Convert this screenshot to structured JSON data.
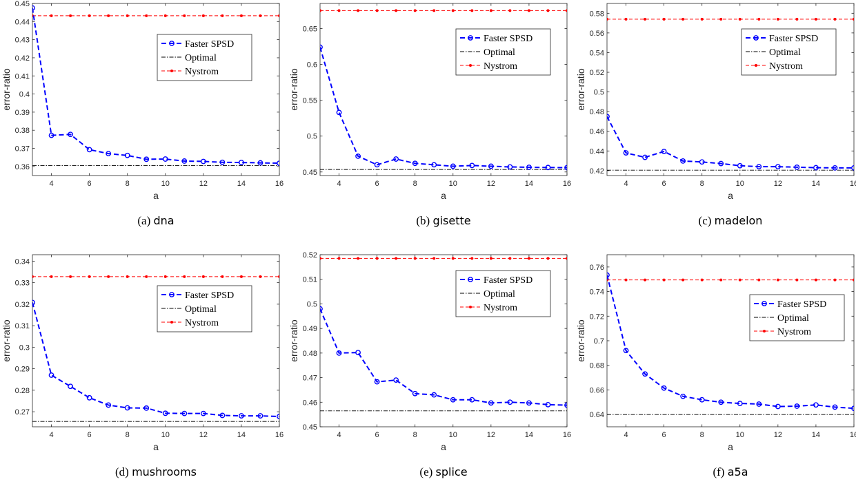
{
  "chart_data": [
    {
      "type": "line",
      "caption_letter": "(a)",
      "caption_name": "dna",
      "xlabel": "a",
      "ylabel": "error-ratio",
      "xlim": [
        3,
        16
      ],
      "ylim": [
        0.355,
        0.45
      ],
      "xticks": [
        4,
        6,
        8,
        10,
        12,
        14,
        16
      ],
      "yticks": [
        0.36,
        0.37,
        0.38,
        0.39,
        0.4,
        0.41,
        0.42,
        0.43,
        0.44,
        0.45
      ],
      "x": [
        3,
        4,
        5,
        6,
        7,
        8,
        9,
        10,
        11,
        12,
        13,
        14,
        15,
        16
      ],
      "series": [
        {
          "name": "Faster SPSD",
          "color": "#0000ff",
          "values": [
            0.4475,
            0.3772,
            0.3777,
            0.3693,
            0.3671,
            0.3661,
            0.364,
            0.3641,
            0.363,
            0.3628,
            0.3623,
            0.3622,
            0.362,
            0.3618
          ]
        },
        {
          "name": "Optimal",
          "color": "#000000",
          "values": [
            0.3605,
            0.3605,
            0.3605,
            0.3605,
            0.3605,
            0.3605,
            0.3605,
            0.3605,
            0.3605,
            0.3605,
            0.3605,
            0.3605,
            0.3605,
            0.3605
          ]
        },
        {
          "name": "Nystrom",
          "color": "#ff0000",
          "values": [
            0.4432,
            0.4432,
            0.4432,
            0.4432,
            0.4432,
            0.4432,
            0.4432,
            0.4432,
            0.4432,
            0.4432,
            0.4432,
            0.4432,
            0.4432,
            0.4432
          ]
        }
      ],
      "legend": "upper-right-mid"
    },
    {
      "type": "line",
      "caption_letter": "(b)",
      "caption_name": "gisette",
      "xlabel": "a",
      "ylabel": "error-ratio",
      "xlim": [
        3,
        16
      ],
      "ylim": [
        0.445,
        0.685
      ],
      "xticks": [
        4,
        6,
        8,
        10,
        12,
        14,
        16
      ],
      "yticks": [
        0.45,
        0.5,
        0.55,
        0.6,
        0.65
      ],
      "x": [
        3,
        4,
        5,
        6,
        7,
        8,
        9,
        10,
        11,
        12,
        13,
        14,
        15,
        16
      ],
      "series": [
        {
          "name": "Faster SPSD",
          "color": "#0000ff",
          "values": [
            0.624,
            0.533,
            0.472,
            0.46,
            0.468,
            0.462,
            0.46,
            0.458,
            0.459,
            0.458,
            0.457,
            0.4565,
            0.4562,
            0.456
          ]
        },
        {
          "name": "Optimal",
          "color": "#000000",
          "values": [
            0.4535,
            0.4535,
            0.4535,
            0.4535,
            0.4535,
            0.4535,
            0.4535,
            0.4535,
            0.4535,
            0.4535,
            0.4535,
            0.4535,
            0.4535,
            0.4535
          ]
        },
        {
          "name": "Nystrom",
          "color": "#ff0000",
          "values": [
            0.675,
            0.675,
            0.675,
            0.675,
            0.675,
            0.675,
            0.675,
            0.675,
            0.675,
            0.675,
            0.675,
            0.675,
            0.675,
            0.675
          ]
        }
      ],
      "legend": "upper-right-mid"
    },
    {
      "type": "line",
      "caption_letter": "(c)",
      "caption_name": "madelon",
      "xlabel": "a",
      "ylabel": "error-ratio",
      "xlim": [
        3,
        16
      ],
      "ylim": [
        0.415,
        0.59
      ],
      "xticks": [
        4,
        6,
        8,
        10,
        12,
        14,
        16
      ],
      "yticks": [
        0.42,
        0.44,
        0.46,
        0.48,
        0.5,
        0.52,
        0.54,
        0.56,
        0.58
      ],
      "x": [
        3,
        4,
        5,
        6,
        7,
        8,
        9,
        10,
        11,
        12,
        13,
        14,
        15,
        16
      ],
      "series": [
        {
          "name": "Faster SPSD",
          "color": "#0000ff",
          "values": [
            0.475,
            0.438,
            0.4335,
            0.4395,
            0.4298,
            0.4288,
            0.4272,
            0.425,
            0.424,
            0.424,
            0.4235,
            0.423,
            0.4228,
            0.4228
          ]
        },
        {
          "name": "Optimal",
          "color": "#000000",
          "values": [
            0.4205,
            0.4205,
            0.4205,
            0.4205,
            0.4205,
            0.4205,
            0.4205,
            0.4205,
            0.4205,
            0.4205,
            0.4205,
            0.4205,
            0.4205,
            0.4205
          ]
        },
        {
          "name": "Nystrom",
          "color": "#ff0000",
          "values": [
            0.574,
            0.574,
            0.574,
            0.574,
            0.574,
            0.574,
            0.574,
            0.574,
            0.574,
            0.574,
            0.574,
            0.574,
            0.574,
            0.574
          ]
        }
      ],
      "legend": "upper-right-mid"
    },
    {
      "type": "line",
      "caption_letter": "(d)",
      "caption_name": "mushrooms",
      "xlabel": "a",
      "ylabel": "error-ratio",
      "xlim": [
        3,
        16
      ],
      "ylim": [
        0.263,
        0.343
      ],
      "xticks": [
        4,
        6,
        8,
        10,
        12,
        14,
        16
      ],
      "yticks": [
        0.27,
        0.28,
        0.29,
        0.3,
        0.31,
        0.32,
        0.33,
        0.34
      ],
      "x": [
        3,
        4,
        5,
        6,
        7,
        8,
        9,
        10,
        11,
        12,
        13,
        14,
        15,
        16
      ],
      "series": [
        {
          "name": "Faster SPSD",
          "color": "#0000ff",
          "values": [
            0.3208,
            0.287,
            0.2818,
            0.2765,
            0.2731,
            0.2718,
            0.2717,
            0.2693,
            0.2692,
            0.2692,
            0.2683,
            0.2681,
            0.2681,
            0.2678
          ]
        },
        {
          "name": "Optimal",
          "color": "#000000",
          "values": [
            0.2655,
            0.2655,
            0.2655,
            0.2655,
            0.2655,
            0.2655,
            0.2655,
            0.2655,
            0.2655,
            0.2655,
            0.2655,
            0.2655,
            0.2655,
            0.2655
          ]
        },
        {
          "name": "Nystrom",
          "color": "#ff0000",
          "values": [
            0.3328,
            0.3328,
            0.3328,
            0.3328,
            0.3328,
            0.3328,
            0.3328,
            0.3328,
            0.3328,
            0.3328,
            0.3328,
            0.3328,
            0.3328,
            0.3328
          ]
        }
      ],
      "legend": "upper-right-mid"
    },
    {
      "type": "line",
      "caption_letter": "(e)",
      "caption_name": "splice",
      "xlabel": "a",
      "ylabel": "error-ratio",
      "xlim": [
        3,
        16
      ],
      "ylim": [
        0.45,
        0.52
      ],
      "xticks": [
        4,
        6,
        8,
        10,
        12,
        14,
        16
      ],
      "yticks": [
        0.45,
        0.46,
        0.47,
        0.48,
        0.49,
        0.5,
        0.51,
        0.52
      ],
      "x": [
        3,
        4,
        5,
        6,
        7,
        8,
        9,
        10,
        11,
        12,
        13,
        14,
        15,
        16
      ],
      "series": [
        {
          "name": "Faster SPSD",
          "color": "#0000ff",
          "values": [
            0.498,
            0.48,
            0.4802,
            0.4683,
            0.469,
            0.4635,
            0.463,
            0.461,
            0.461,
            0.4597,
            0.46,
            0.4597,
            0.459,
            0.4588
          ]
        },
        {
          "name": "Optimal",
          "color": "#000000",
          "values": [
            0.4565,
            0.4565,
            0.4565,
            0.4565,
            0.4565,
            0.4565,
            0.4565,
            0.4565,
            0.4565,
            0.4565,
            0.4565,
            0.4565,
            0.4565,
            0.4565
          ]
        },
        {
          "name": "Nystrom",
          "color": "#ff0000",
          "values": [
            0.5185,
            0.5185,
            0.5185,
            0.5185,
            0.5185,
            0.5185,
            0.5185,
            0.5185,
            0.5185,
            0.5185,
            0.5185,
            0.5185,
            0.5185,
            0.5185
          ]
        }
      ],
      "legend": "upper-right-mid"
    },
    {
      "type": "line",
      "caption_letter": "(f)",
      "caption_name": "a5a",
      "xlabel": "a",
      "ylabel": "error-ratio",
      "xlim": [
        3,
        16
      ],
      "ylim": [
        0.63,
        0.77
      ],
      "xticks": [
        4,
        6,
        8,
        10,
        12,
        14,
        16
      ],
      "yticks": [
        0.64,
        0.66,
        0.68,
        0.7,
        0.72,
        0.74,
        0.76
      ],
      "x": [
        3,
        4,
        5,
        6,
        7,
        8,
        9,
        10,
        11,
        12,
        13,
        14,
        15,
        16
      ],
      "series": [
        {
          "name": "Faster SPSD",
          "color": "#0000ff",
          "values": [
            0.7535,
            0.692,
            0.673,
            0.6615,
            0.6548,
            0.652,
            0.65,
            0.649,
            0.6485,
            0.6465,
            0.6468,
            0.6478,
            0.646,
            0.645
          ]
        },
        {
          "name": "Optimal",
          "color": "#000000",
          "values": [
            0.64,
            0.64,
            0.64,
            0.64,
            0.64,
            0.64,
            0.64,
            0.64,
            0.64,
            0.64,
            0.64,
            0.64,
            0.64,
            0.64
          ]
        },
        {
          "name": "Nystrom",
          "color": "#ff0000",
          "values": [
            0.7495,
            0.7495,
            0.7495,
            0.7495,
            0.7495,
            0.7495,
            0.7495,
            0.7495,
            0.7495,
            0.7495,
            0.7495,
            0.7495,
            0.7495,
            0.7495
          ]
        }
      ],
      "legend": "upper-right-lower"
    }
  ]
}
